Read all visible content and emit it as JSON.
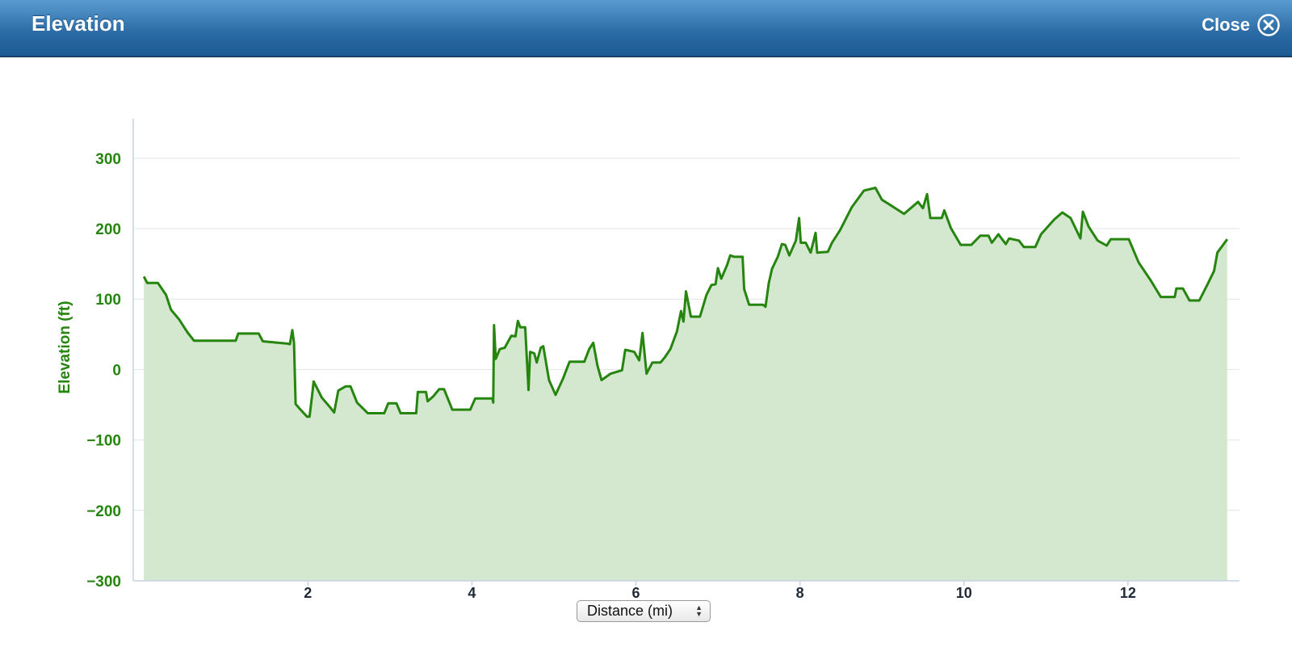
{
  "header": {
    "title": "Elevation",
    "close": "Close"
  },
  "chart_data": {
    "type": "area",
    "y_label": "Elevation (ft)",
    "x_label": "Distance (mi)",
    "color": "#26850f",
    "fill": "#d4e7cf",
    "grid": true,
    "xlim": [
      -0.13,
      13.36
    ],
    "xticks": [
      2,
      4,
      6,
      8,
      10,
      12
    ],
    "ylim": [
      -300,
      356
    ],
    "yticks": [
      {
        "value": -300,
        "label": "−300"
      },
      {
        "value": -200,
        "label": "−200"
      },
      {
        "value": -100,
        "label": "−100"
      },
      0,
      100,
      200,
      300
    ],
    "x": [
      0,
      0.04,
      0.17,
      0.27,
      0.33,
      0.43,
      0.53,
      0.61,
      1.12,
      1.15,
      1.4,
      1.45,
      1.74,
      1.78,
      1.81,
      1.83,
      1.85,
      1.91,
      1.99,
      2.02,
      2.05,
      2.07,
      2.17,
      2.28,
      2.32,
      2.37,
      2.46,
      2.52,
      2.6,
      2.73,
      2.93,
      2.98,
      3.08,
      3.13,
      3.32,
      3.34,
      3.44,
      3.46,
      3.53,
      3.6,
      3.66,
      3.76,
      3.98,
      4.04,
      4.25,
      4.26,
      4.27,
      4.29,
      4.34,
      4.4,
      4.48,
      4.53,
      4.56,
      4.59,
      4.65,
      4.69,
      4.71,
      4.76,
      4.79,
      4.84,
      4.87,
      4.94,
      5.02,
      5.11,
      5.19,
      5.37,
      5.43,
      5.48,
      5.53,
      5.58,
      5.69,
      5.83,
      5.87,
      5.98,
      6.04,
      6.08,
      6.13,
      6.2,
      6.3,
      6.35,
      6.42,
      6.5,
      6.55,
      6.58,
      6.61,
      6.67,
      6.78,
      6.86,
      6.92,
      6.97,
      7.0,
      7.04,
      7.11,
      7.15,
      7.2,
      7.3,
      7.32,
      7.38,
      7.55,
      7.58,
      7.62,
      7.66,
      7.73,
      7.78,
      7.82,
      7.87,
      7.95,
      7.99,
      8.01,
      8.07,
      8.13,
      8.19,
      8.21,
      8.34,
      8.39,
      8.49,
      8.63,
      8.78,
      8.92,
      9.0,
      9.11,
      9.27,
      9.35,
      9.44,
      9.5,
      9.55,
      9.59,
      9.73,
      9.76,
      9.84,
      9.96,
      10.09,
      10.2,
      10.3,
      10.34,
      10.42,
      10.51,
      10.55,
      10.67,
      10.73,
      10.87,
      10.94,
      11.1,
      11.2,
      11.3,
      11.42,
      11.45,
      11.52,
      11.63,
      11.74,
      11.79,
      12.01,
      12.13,
      12.28,
      12.4,
      12.57,
      12.59,
      12.67,
      12.75,
      12.87,
      12.97,
      13.05,
      13.09,
      13.21
    ],
    "values": [
      132,
      123,
      123,
      106,
      85,
      71,
      53,
      41,
      41,
      51,
      51,
      40,
      37,
      36,
      56,
      38,
      -49,
      -57,
      -67,
      -67,
      -38,
      -17,
      -40,
      -55,
      -61,
      -30,
      -24,
      -24,
      -47,
      -62,
      -62,
      -48,
      -48,
      -62,
      -62,
      -32,
      -32,
      -45,
      -38,
      -28,
      -28,
      -57,
      -57,
      -41,
      -41,
      -47,
      63,
      15,
      29,
      31,
      48,
      47,
      69,
      60,
      60,
      -29,
      25,
      23,
      10,
      31,
      33,
      -15,
      -36,
      -13,
      11,
      11,
      29,
      38,
      6,
      -15,
      -6,
      -1,
      28,
      25,
      13,
      52,
      -6,
      10,
      10,
      17,
      29,
      54,
      83,
      68,
      111,
      75,
      75,
      106,
      120,
      121,
      144,
      129,
      148,
      162,
      160,
      160,
      114,
      92,
      92,
      89,
      123,
      143,
      160,
      178,
      177,
      162,
      183,
      215,
      180,
      180,
      166,
      194,
      166,
      167,
      180,
      198,
      230,
      254,
      258,
      241,
      233,
      221,
      229,
      238,
      229,
      249,
      215,
      215,
      226,
      201,
      177,
      177,
      190,
      190,
      180,
      192,
      178,
      186,
      183,
      174,
      174,
      192,
      213,
      223,
      215,
      186,
      224,
      203,
      183,
      176,
      185,
      185,
      152,
      126,
      103,
      103,
      115,
      115,
      98,
      98,
      121,
      140,
      166,
      185
    ]
  }
}
